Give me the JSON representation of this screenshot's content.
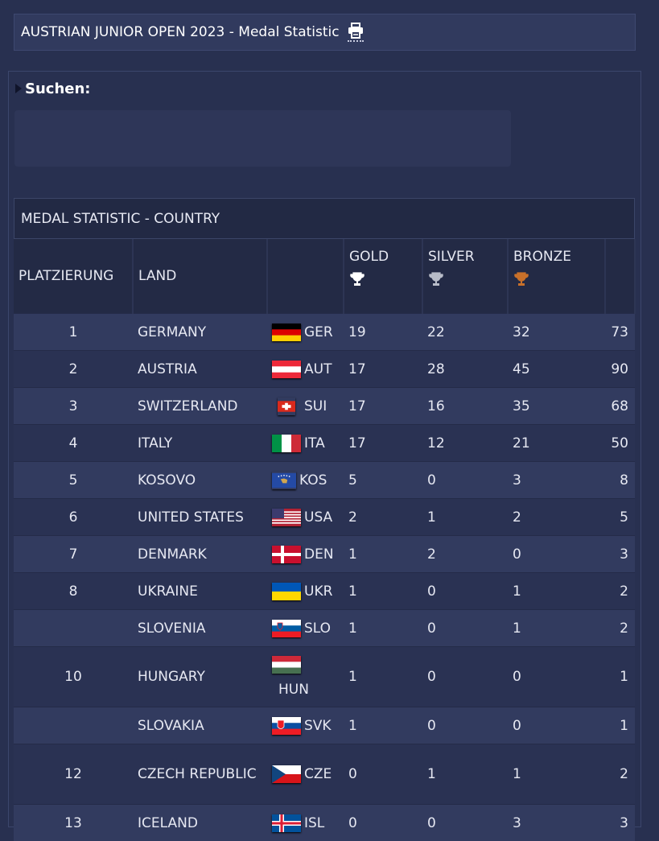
{
  "header": {
    "title": "AUSTRIAN JUNIOR OPEN 2023 - Medal Statistic"
  },
  "search": {
    "label": "Suchen:"
  },
  "table": {
    "caption": "MEDAL STATISTIC - COUNTRY",
    "columns": {
      "rank": "PLATZIERUNG",
      "country": "LAND",
      "gold": "GOLD",
      "silver": "SILVER",
      "bronze": "BRONZE"
    },
    "colors": {
      "gold": "#ffffff",
      "silver": "#b8bcc8",
      "bronze": "#c8702a"
    },
    "rows": [
      {
        "rank": "1",
        "country": "GERMANY",
        "code": "GER",
        "gold": "19",
        "silver": "22",
        "bronze": "32",
        "total": "73"
      },
      {
        "rank": "2",
        "country": "AUSTRIA",
        "code": "AUT",
        "gold": "17",
        "silver": "28",
        "bronze": "45",
        "total": "90"
      },
      {
        "rank": "3",
        "country": "SWITZERLAND",
        "code": "SUI",
        "gold": "17",
        "silver": "16",
        "bronze": "35",
        "total": "68"
      },
      {
        "rank": "4",
        "country": "ITALY",
        "code": "ITA",
        "gold": "17",
        "silver": "12",
        "bronze": "21",
        "total": "50"
      },
      {
        "rank": "5",
        "country": "KOSOVO",
        "code": "KOS",
        "gold": "5",
        "silver": "0",
        "bronze": "3",
        "total": "8"
      },
      {
        "rank": "6",
        "country": "UNITED STATES",
        "code": "USA",
        "gold": "2",
        "silver": "1",
        "bronze": "2",
        "total": "5"
      },
      {
        "rank": "7",
        "country": "DENMARK",
        "code": "DEN",
        "gold": "1",
        "silver": "2",
        "bronze": "0",
        "total": "3"
      },
      {
        "rank": "8",
        "country": "UKRAINE",
        "code": "UKR",
        "gold": "1",
        "silver": "0",
        "bronze": "1",
        "total": "2"
      },
      {
        "rank": "",
        "country": "SLOVENIA",
        "code": "SLO",
        "gold": "1",
        "silver": "0",
        "bronze": "1",
        "total": "2"
      },
      {
        "rank": "10",
        "country": "HUNGARY",
        "code": "HUN",
        "gold": "1",
        "silver": "0",
        "bronze": "0",
        "total": "1"
      },
      {
        "rank": "",
        "country": "SLOVAKIA",
        "code": "SVK",
        "gold": "1",
        "silver": "0",
        "bronze": "0",
        "total": "1"
      },
      {
        "rank": "12",
        "country": "CZECH REPUBLIC",
        "code": "CZE",
        "gold": "0",
        "silver": "1",
        "bronze": "1",
        "total": "2"
      },
      {
        "rank": "13",
        "country": "ICELAND",
        "code": "ISL",
        "gold": "0",
        "silver": "0",
        "bronze": "3",
        "total": "3"
      }
    ]
  }
}
